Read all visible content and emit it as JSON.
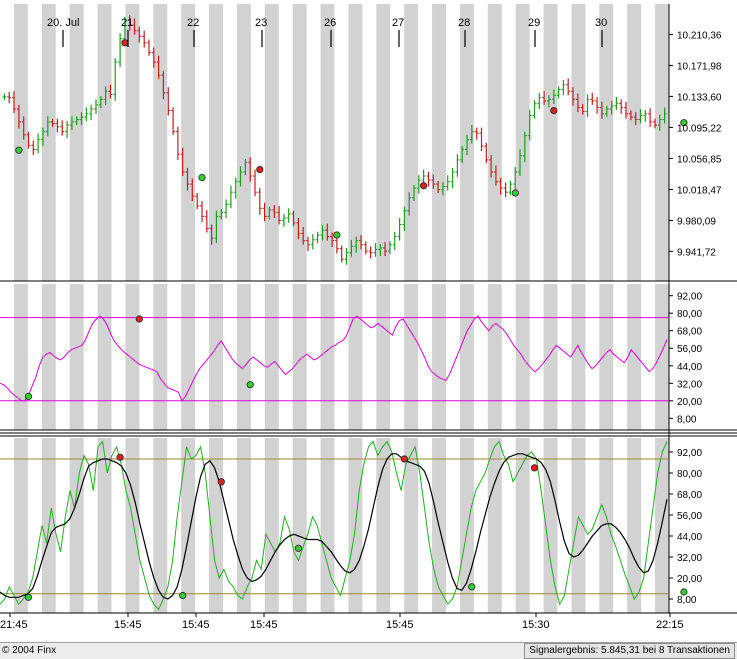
{
  "colors": {
    "band": "#d2d2d2",
    "up_bar": "#1f9c1f",
    "down_bar": "#c81e1e",
    "rsi_line": "#e000e0",
    "rsi_levels": "#e000e0",
    "stoch_fast": "#20b020",
    "stoch_slow": "#000000",
    "stoch_levels": "#9a8a2a",
    "buy_marker": "#33cc33",
    "sell_marker": "#dd2222"
  },
  "footer": {
    "copyright": "© 2004 Finx",
    "signal_result": "Signalergebnis: 5.845,31 bei 8 Transaktionen"
  },
  "chart_data": [
    {
      "type": "line",
      "panel": "price",
      "style": "ohlc",
      "day_labels": [
        "20. Jul",
        "21",
        "22",
        "23",
        "26",
        "27",
        "28",
        "29",
        "30"
      ],
      "y_ticks": [
        "10.210,36",
        "10.171,98",
        "10.133,60",
        "10.095,22",
        "10.056,85",
        "10.018,47",
        "9.980,09",
        "9.941,72"
      ],
      "ylim": [
        9905,
        10248
      ],
      "series": [
        {
          "values": [
            10133,
            10132,
            10118,
            10102,
            10086,
            10073,
            10068,
            10080,
            10090,
            10102,
            10100,
            10096,
            10090,
            10098,
            10102,
            10105,
            10108,
            10112,
            10118,
            10123,
            10130,
            10140,
            10136,
            10176,
            10205,
            10228,
            10222,
            10215,
            10208,
            10200,
            10188,
            10176,
            10160,
            10138,
            10116,
            10090,
            10062,
            10040,
            10025,
            10010,
            9998,
            9985,
            9970,
            9958,
            9985,
            9990,
            10000,
            10015,
            10028,
            10040,
            10052,
            10035,
            10015,
            9995,
            9985,
            9993,
            9990,
            9980,
            9983,
            9988,
            9977,
            9964,
            9955,
            9950,
            9956,
            9962,
            9968,
            9960,
            9955,
            9945,
            9932,
            9940,
            9948,
            9955,
            9950,
            9942,
            9940,
            9944,
            9946,
            9942,
            9950,
            9960,
            9975,
            9992,
            10008,
            10020,
            10030,
            10035,
            10030,
            10025,
            10018,
            10022,
            10028,
            10040,
            10055,
            10068,
            10080,
            10090,
            10088,
            10072,
            10055,
            10040,
            10028,
            10020,
            10015,
            10025,
            10040,
            10060,
            10085,
            10110,
            10125,
            10132,
            10128,
            10130,
            10135,
            10142,
            10148,
            10140,
            10130,
            10120,
            10115,
            10130,
            10128,
            10120,
            10112,
            10118,
            10122,
            10125,
            10120,
            10112,
            10108,
            10105,
            10110,
            10112,
            10102,
            10098,
            10105,
            10112
          ]
        }
      ],
      "signals": [
        {
          "index": 3,
          "value": 10067,
          "kind": "buy"
        },
        {
          "index": 25,
          "value": 10200,
          "kind": "sell"
        },
        {
          "index": 41,
          "value": 10033,
          "kind": "buy"
        },
        {
          "index": 53,
          "value": 10043,
          "kind": "sell"
        },
        {
          "index": 69,
          "value": 9962,
          "kind": "buy"
        },
        {
          "index": 87,
          "value": 10023,
          "kind": "sell"
        },
        {
          "index": 106,
          "value": 10014,
          "kind": "buy"
        },
        {
          "index": 114,
          "value": 10116,
          "kind": "sell"
        },
        {
          "index": 141,
          "value": 10101,
          "kind": "buy"
        }
      ]
    },
    {
      "type": "line",
      "panel": "rsi",
      "y_ticks": [
        "92,00",
        "80,00",
        "68,00",
        "56,00",
        "44,00",
        "32,00",
        "20,00",
        "8,00"
      ],
      "ylim": [
        0,
        100
      ],
      "levels": [
        77,
        20
      ],
      "series": [
        {
          "values": [
            32,
            31,
            29,
            26,
            24,
            22,
            20,
            20,
            24,
            30,
            36,
            44,
            50,
            52,
            53,
            51,
            49,
            48,
            50,
            53,
            55,
            56,
            57,
            58,
            62,
            68,
            73,
            76,
            78,
            76,
            72,
            66,
            61,
            58,
            55,
            53,
            51,
            49,
            47,
            45,
            44,
            43,
            42,
            41,
            40,
            35,
            32,
            29,
            28,
            27,
            26,
            20,
            23,
            28,
            33,
            38,
            42,
            45,
            48,
            51,
            54,
            58,
            61,
            57,
            53,
            49,
            46,
            44,
            42,
            45,
            48,
            50,
            48,
            46,
            44,
            43,
            45,
            47,
            44,
            41,
            38,
            40,
            42,
            45,
            48,
            50,
            52,
            50,
            48,
            49,
            51,
            53,
            55,
            57,
            58,
            60,
            61,
            64,
            70,
            76,
            78,
            76,
            74,
            72,
            70,
            71,
            73,
            71,
            69,
            67,
            65,
            71,
            75,
            76,
            72,
            68,
            64,
            60,
            55,
            50,
            44,
            40,
            38,
            36,
            35,
            34,
            38,
            44,
            50,
            56,
            62,
            68,
            72,
            76,
            78,
            74,
            71,
            68,
            71,
            73,
            71,
            69,
            66,
            62,
            58,
            55,
            52,
            48,
            45,
            42,
            40,
            42,
            45,
            48,
            51,
            55,
            58,
            56,
            54,
            52,
            50,
            54,
            58,
            53,
            49,
            45,
            42,
            44,
            47,
            50,
            53,
            55,
            52,
            50,
            48,
            46,
            50,
            55,
            52,
            49,
            46,
            43,
            40,
            42,
            46,
            51,
            56,
            62
          ]
        }
      ],
      "signals": [
        {
          "index": 5,
          "value": 23,
          "kind": "buy"
        },
        {
          "index": 28,
          "value": 76,
          "kind": "sell"
        },
        {
          "index": 51,
          "value": 31,
          "kind": "buy"
        }
      ]
    },
    {
      "type": "line",
      "panel": "stochastic",
      "x_ticks": [
        "21:45",
        "15:45",
        "15:45",
        "15:45",
        "15:45",
        "15:30",
        "22:15"
      ],
      "y_ticks": [
        "92,00",
        "80,00",
        "68,00",
        "56,00",
        "44,00",
        "32,00",
        "20,00",
        "8,00"
      ],
      "ylim": [
        0,
        100
      ],
      "levels": [
        88,
        11
      ],
      "series": [
        {
          "name_key": "fast",
          "values": [
            5,
            8,
            15,
            10,
            5,
            8,
            12,
            20,
            35,
            50,
            40,
            60,
            45,
            35,
            55,
            70,
            60,
            80,
            90,
            85,
            70,
            95,
            98,
            80,
            90,
            95,
            85,
            70,
            60,
            45,
            30,
            20,
            10,
            5,
            2,
            8,
            15,
            30,
            55,
            75,
            95,
            88,
            90,
            95,
            80,
            55,
            30,
            20,
            25,
            18,
            15,
            10,
            8,
            15,
            20,
            30,
            25,
            45,
            40,
            35,
            40,
            55,
            48,
            35,
            30,
            38,
            45,
            55,
            50,
            40,
            30,
            20,
            15,
            10,
            20,
            30,
            45,
            70,
            85,
            95,
            98,
            90,
            95,
            98,
            92,
            80,
            70,
            85,
            90,
            95,
            80,
            60,
            40,
            25,
            15,
            10,
            5,
            8,
            15,
            30,
            45,
            60,
            70,
            75,
            80,
            88,
            95,
            98,
            90,
            85,
            75,
            80,
            85,
            90,
            92,
            88,
            70,
            50,
            30,
            15,
            5,
            10,
            25,
            40,
            55,
            50,
            45,
            48,
            55,
            62,
            55,
            45,
            38,
            30,
            22,
            15,
            8,
            12,
            20,
            40,
            60,
            80,
            92,
            98
          ]
        },
        {
          "name_key": "slow",
          "values": [
            12,
            10,
            9,
            9,
            9,
            10,
            11,
            14,
            21,
            30,
            38,
            46,
            49,
            50,
            51,
            54,
            60,
            68,
            77,
            84,
            86,
            87,
            88,
            88,
            87,
            86,
            84,
            80,
            73,
            63,
            51,
            40,
            29,
            20,
            13,
            9,
            8,
            10,
            15,
            25,
            38,
            52,
            66,
            78,
            85,
            87,
            83,
            75,
            64,
            53,
            42,
            33,
            25,
            20,
            18,
            19,
            21,
            25,
            30,
            35,
            39,
            42,
            44,
            45,
            44,
            43,
            42,
            42,
            42,
            41,
            38,
            35,
            31,
            27,
            24,
            23,
            25,
            30,
            38,
            48,
            60,
            72,
            82,
            88,
            91,
            91,
            89,
            87,
            86,
            85,
            84,
            81,
            74,
            63,
            51,
            40,
            29,
            20,
            14,
            13,
            17,
            25,
            35,
            46,
            56,
            66,
            74,
            81,
            86,
            89,
            90,
            91,
            91,
            90,
            89,
            88,
            86,
            82,
            75,
            64,
            52,
            41,
            34,
            32,
            33,
            36,
            40,
            44,
            47,
            50,
            51,
            51,
            49,
            46,
            42,
            37,
            31,
            26,
            23,
            24,
            30,
            40,
            52,
            65
          ]
        }
      ],
      "signals": [
        {
          "index": 5,
          "value": 9,
          "kind": "buy"
        },
        {
          "index": 24,
          "value": 89,
          "kind": "sell"
        },
        {
          "index": 37,
          "value": 10,
          "kind": "buy"
        },
        {
          "index": 45,
          "value": 75,
          "kind": "sell"
        },
        {
          "index": 61,
          "value": 37,
          "kind": "buy"
        },
        {
          "index": 83,
          "value": 88,
          "kind": "sell"
        },
        {
          "index": 97,
          "value": 15,
          "kind": "buy"
        },
        {
          "index": 110,
          "value": 83,
          "kind": "sell"
        },
        {
          "index": 141,
          "value": 12,
          "kind": "buy"
        }
      ]
    }
  ]
}
